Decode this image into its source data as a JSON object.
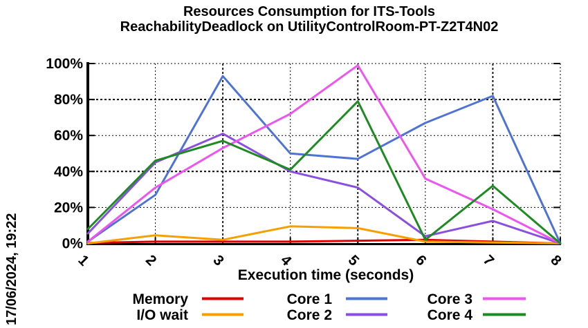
{
  "timestamp": "17/06/2024, 19:22",
  "chart_data": {
    "type": "line",
    "title": "Resources Consumption for ITS-Tools ReachabilityDeadlock on UtilityControlRoom-PT-Z2T4N02",
    "title_lines": [
      "Resources Consumption for ITS-Tools",
      "ReachabilityDeadlock on UtilityControlRoom-PT-Z2T4N02"
    ],
    "xlabel": "Execution time (seconds)",
    "ylabel": "",
    "x": [
      1,
      2,
      3,
      4,
      5,
      6,
      7,
      8
    ],
    "xtick_labels": [
      "1",
      "2",
      "3",
      "4",
      "5",
      "6",
      "7",
      "8"
    ],
    "xlim": [
      1,
      8
    ],
    "ylim": [
      0,
      100
    ],
    "yticks": [
      0,
      20,
      40,
      60,
      80,
      100
    ],
    "ytick_labels": [
      "0%",
      "20%",
      "40%",
      "60%",
      "80%",
      "100%"
    ],
    "grid": true,
    "legend_position": "bottom",
    "axis_color": "#000000",
    "background_color": "#ffffff",
    "series": [
      {
        "name": "Memory",
        "color": "#e10000",
        "values": [
          0.3,
          1,
          1,
          1,
          1.5,
          2,
          1,
          0
        ]
      },
      {
        "name": "I/O wait",
        "color": "#f5a000",
        "values": [
          0,
          4.5,
          2,
          9.5,
          8.5,
          1,
          0.5,
          0
        ]
      },
      {
        "name": "Core 1",
        "color": "#4e73d4",
        "values": [
          1,
          27,
          93,
          50,
          47,
          67,
          82,
          0
        ]
      },
      {
        "name": "Core 2",
        "color": "#8b4fe0",
        "values": [
          5.5,
          45,
          61,
          40,
          31,
          4,
          12.5,
          0
        ]
      },
      {
        "name": "Core 3",
        "color": "#ee55ee",
        "values": [
          1,
          31,
          53,
          72,
          99,
          36,
          19,
          0
        ]
      },
      {
        "name": "Core 4",
        "color": "#1e8b22",
        "values": [
          8,
          46,
          57,
          41,
          79,
          2,
          32,
          0
        ]
      }
    ]
  }
}
